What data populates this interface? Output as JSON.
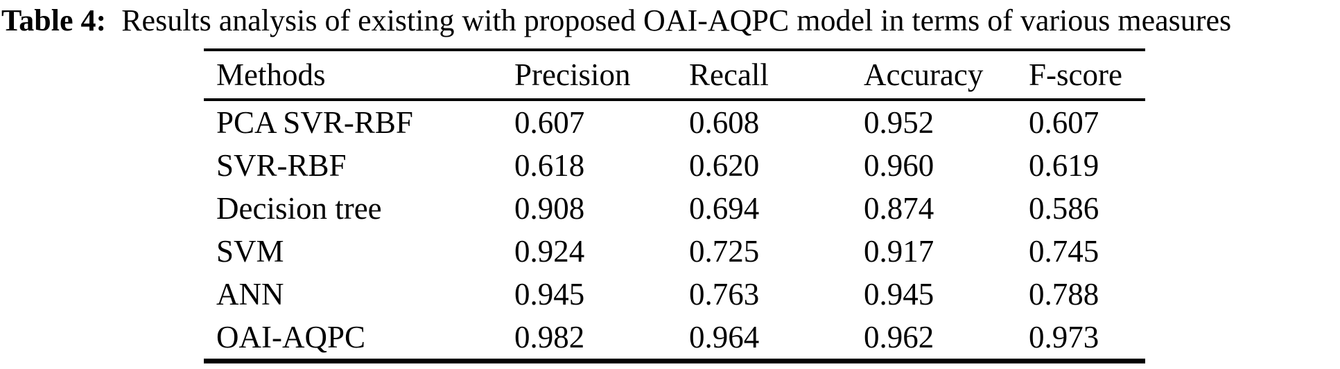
{
  "caption": {
    "label": "Table 4:",
    "text": "Results analysis of existing with proposed OAI-AQPC model in terms of various measures"
  },
  "table": {
    "columns": [
      "Methods",
      "Precision",
      "Recall",
      "Accuracy",
      "F-score"
    ],
    "rows": [
      {
        "method": "PCA SVR-RBF",
        "precision": "0.607",
        "recall": "0.608",
        "accuracy": "0.952",
        "fscore": "0.607"
      },
      {
        "method": "SVR-RBF",
        "precision": "0.618",
        "recall": "0.620",
        "accuracy": "0.960",
        "fscore": "0.619"
      },
      {
        "method": "Decision tree",
        "precision": "0.908",
        "recall": "0.694",
        "accuracy": "0.874",
        "fscore": "0.586"
      },
      {
        "method": "SVM",
        "precision": "0.924",
        "recall": "0.725",
        "accuracy": "0.917",
        "fscore": "0.745"
      },
      {
        "method": "ANN",
        "precision": "0.945",
        "recall": "0.763",
        "accuracy": "0.945",
        "fscore": "0.788"
      },
      {
        "method": "OAI-AQPC",
        "precision": "0.982",
        "recall": "0.964",
        "accuracy": "0.962",
        "fscore": "0.973"
      }
    ]
  },
  "colors": {
    "text": "#000000",
    "background": "#ffffff",
    "rule": "#000000"
  }
}
